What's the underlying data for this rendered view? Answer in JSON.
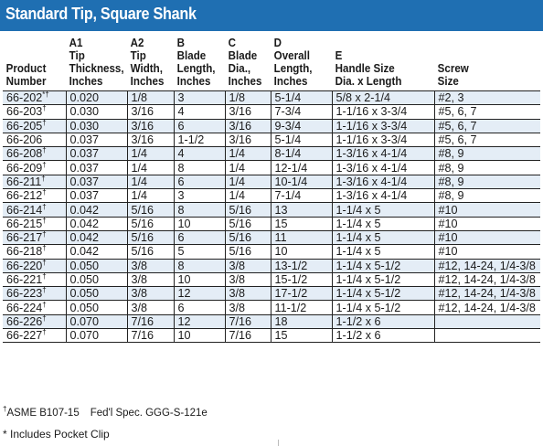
{
  "title": "Standard Tip, Square Shank",
  "columns": [
    "\nProduct\nNumber",
    "A1\nTip\nThickness,\nInches",
    "A2\nTip\nWidth,\nInches",
    "B\nBlade\nLength,\nInches",
    "C\nBlade\nDia.,\nInches",
    "D\nOverall\nLength,\nInches",
    "E\nHandle Size\nDia. x Length",
    "Screw\nSize"
  ],
  "rows": [
    {
      "product": "66-202",
      "mark": "*†",
      "a1": "0.020",
      "a2": "1/8",
      "b": "3",
      "c": "1/8",
      "d": "5-1/4",
      "e": "5/8 x 2-1/4",
      "screw": "#2, 3"
    },
    {
      "product": "66-203",
      "mark": "†",
      "a1": "0.030",
      "a2": "3/16",
      "b": "4",
      "c": "3/16",
      "d": "7-3/4",
      "e": "1-1/16 x 3-3/4",
      "screw": "#5, 6, 7"
    },
    {
      "product": "66-205",
      "mark": "†",
      "a1": "0.030",
      "a2": "3/16",
      "b": "6",
      "c": "3/16",
      "d": "9-3/4",
      "e": "1-1/16 x 3-3/4",
      "screw": "#5, 6, 7"
    },
    {
      "product": "66-206",
      "mark": "",
      "a1": "0.037",
      "a2": "3/16",
      "b": "1-1/2",
      "c": "3/16",
      "d": "5-1/4",
      "e": "1-1/16 x 3-3/4",
      "screw": "#5, 6, 7"
    },
    {
      "product": "66-208",
      "mark": "†",
      "a1": "0.037",
      "a2": "1/4",
      "b": "4",
      "c": "1/4",
      "d": "8-1/4",
      "e": "1-3/16 x 4-1/4",
      "screw": "#8, 9"
    },
    {
      "product": "66-209",
      "mark": "†",
      "a1": "0.037",
      "a2": "1/4",
      "b": "8",
      "c": "1/4",
      "d": "12-1/4",
      "e": "1-3/16 x 4-1/4",
      "screw": "#8, 9"
    },
    {
      "product": "66-211",
      "mark": "†",
      "a1": "0.037",
      "a2": "1/4",
      "b": "6",
      "c": "1/4",
      "d": "10-1/4",
      "e": "1-3/16 x 4-1/4",
      "screw": "#8, 9"
    },
    {
      "product": "66-212",
      "mark": "†",
      "a1": "0.037",
      "a2": "1/4",
      "b": "3",
      "c": "1/4",
      "d": "7-1/4",
      "e": "1-3/16 x 4-1/4",
      "screw": "#8, 9"
    },
    {
      "product": "66-214",
      "mark": "†",
      "a1": "0.042",
      "a2": "5/16",
      "b": "8",
      "c": "5/16",
      "d": "13",
      "e": "1-1/4 x 5",
      "screw": "#10"
    },
    {
      "product": "66-215",
      "mark": "†",
      "a1": "0.042",
      "a2": "5/16",
      "b": "10",
      "c": "5/16",
      "d": "15",
      "e": "1-1/4 x 5",
      "screw": "#10"
    },
    {
      "product": "66-217",
      "mark": "†",
      "a1": "0.042",
      "a2": "5/16",
      "b": "6",
      "c": "5/16",
      "d": "11",
      "e": "1-1/4 x 5",
      "screw": "#10"
    },
    {
      "product": "66-218",
      "mark": "†",
      "a1": "0.042",
      "a2": "5/16",
      "b": "5",
      "c": "5/16",
      "d": "10",
      "e": "1-1/4 x 5",
      "screw": "#10"
    },
    {
      "product": "66-220",
      "mark": "†",
      "a1": "0.050",
      "a2": "3/8",
      "b": "8",
      "c": "3/8",
      "d": "13-1/2",
      "e": "1-1/4 x 5-1/2",
      "screw": "#12, 14-24, 1/4-3/8"
    },
    {
      "product": "66-221",
      "mark": "†",
      "a1": "0.050",
      "a2": "3/8",
      "b": "10",
      "c": "3/8",
      "d": "15-1/2",
      "e": "1-1/4 x 5-1/2",
      "screw": "#12, 14-24, 1/4-3/8"
    },
    {
      "product": "66-223",
      "mark": "†",
      "a1": "0.050",
      "a2": "3/8",
      "b": "12",
      "c": "3/8",
      "d": "17-1/2",
      "e": "1-1/4 x 5-1/2",
      "screw": "#12, 14-24, 1/4-3/8"
    },
    {
      "product": "66-224",
      "mark": "†",
      "a1": "0.050",
      "a2": "3/8",
      "b": "6",
      "c": "3/8",
      "d": "11-1/2",
      "e": "1-1/4 x 5-1/2",
      "screw": "#12, 14-24, 1/4-3/8"
    },
    {
      "product": "66-226",
      "mark": "†",
      "a1": "0.070",
      "a2": "7/16",
      "b": "12",
      "c": "7/16",
      "d": "18",
      "e": "1-1/2 x 6",
      "screw": ""
    },
    {
      "product": "66-227",
      "mark": "†",
      "a1": "0.070",
      "a2": "7/16",
      "b": "10",
      "c": "7/16",
      "d": "15",
      "e": "1-1/2 x 6",
      "screw": ""
    }
  ],
  "footnotes": {
    "dagger_symbol": "†",
    "asme": "ASME B107-15",
    "fed_spec": "Fed'l Spec. GGG-S-121e",
    "pocket_clip": "* Includes Pocket Clip"
  },
  "colors": {
    "title_bar": "#1f6fb2",
    "stripe": "#e4edf6"
  }
}
